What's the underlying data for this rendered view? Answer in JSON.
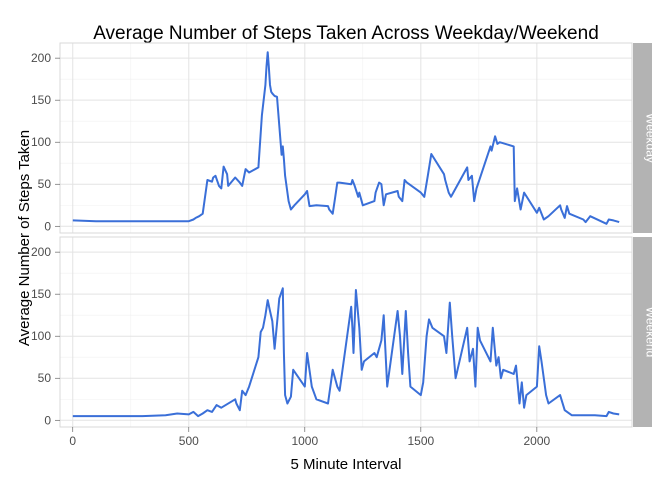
{
  "chart_data": {
    "type": "line",
    "title": "Average Number of Steps Taken Across Weekday/Weekend",
    "xlabel": "5 Minute Interval",
    "ylabel": "Average Number of Steps Taken",
    "xlim": [
      -55,
      2410
    ],
    "ylim": [
      -8,
      218
    ],
    "x_ticks": [
      0,
      500,
      1000,
      1500,
      2000
    ],
    "y_ticks": [
      0,
      50,
      100,
      150,
      200
    ],
    "grid": true,
    "line_color": "#3a6fd8",
    "panel_border_color": "#d9d9d9",
    "strip_color": "#b3b3b3",
    "facets": [
      {
        "name": "Weekday",
        "x": [
          0,
          100,
          200,
          300,
          400,
          480,
          500,
          520,
          530,
          545,
          560,
          580,
          600,
          605,
          615,
          630,
          640,
          650,
          665,
          670,
          700,
          720,
          730,
          745,
          760,
          800,
          815,
          830,
          835,
          840,
          845,
          850,
          855,
          860,
          870,
          880,
          900,
          905,
          910,
          915,
          930,
          940,
          955,
          1000,
          1010,
          1020,
          1050,
          1100,
          1105,
          1120,
          1130,
          1140,
          1150,
          1200,
          1205,
          1215,
          1230,
          1235,
          1250,
          1300,
          1305,
          1320,
          1330,
          1340,
          1350,
          1400,
          1405,
          1420,
          1430,
          1440,
          1450,
          1500,
          1515,
          1530,
          1545,
          1600,
          1605,
          1620,
          1630,
          1640,
          1700,
          1705,
          1720,
          1730,
          1740,
          1800,
          1805,
          1820,
          1830,
          1840,
          1900,
          1905,
          1915,
          1930,
          1945,
          2000,
          2010,
          2030,
          2050,
          2100,
          2105,
          2120,
          2130,
          2140,
          2200,
          2210,
          2230,
          2300,
          2310,
          2330,
          2355
        ],
        "y": [
          7,
          6,
          6,
          6,
          6,
          6,
          6,
          8,
          10,
          12,
          15,
          55,
          53,
          58,
          60,
          48,
          45,
          71,
          62,
          48,
          58,
          52,
          48,
          68,
          64,
          70,
          132,
          168,
          190,
          207,
          190,
          168,
          160,
          158,
          155,
          154,
          85,
          95,
          80,
          60,
          30,
          20,
          25,
          38,
          42,
          24,
          25,
          24,
          20,
          15,
          33,
          52,
          52,
          50,
          55,
          48,
          35,
          40,
          25,
          30,
          40,
          52,
          50,
          25,
          38,
          42,
          35,
          30,
          55,
          52,
          50,
          40,
          35,
          60,
          86,
          62,
          55,
          40,
          35,
          40,
          70,
          55,
          60,
          30,
          45,
          95,
          90,
          107,
          98,
          100,
          95,
          30,
          45,
          20,
          40,
          16,
          22,
          8,
          12,
          25,
          20,
          10,
          24,
          15,
          8,
          5,
          12,
          3,
          8,
          7,
          5
        ]
      },
      {
        "name": "Weekend",
        "x": [
          0,
          100,
          200,
          300,
          400,
          450,
          500,
          520,
          540,
          560,
          580,
          600,
          620,
          640,
          700,
          705,
          720,
          730,
          745,
          760,
          800,
          810,
          820,
          830,
          840,
          850,
          860,
          870,
          880,
          890,
          905,
          910,
          915,
          925,
          940,
          950,
          1000,
          1010,
          1030,
          1050,
          1100,
          1120,
          1140,
          1150,
          1200,
          1205,
          1210,
          1220,
          1235,
          1245,
          1255,
          1300,
          1310,
          1330,
          1340,
          1355,
          1400,
          1410,
          1420,
          1435,
          1445,
          1455,
          1500,
          1510,
          1525,
          1535,
          1550,
          1600,
          1610,
          1625,
          1635,
          1650,
          1700,
          1710,
          1725,
          1735,
          1745,
          1755,
          1800,
          1810,
          1825,
          1835,
          1845,
          1855,
          1900,
          1910,
          1925,
          1935,
          1945,
          1955,
          2000,
          2010,
          2020,
          2030,
          2040,
          2050,
          2100,
          2120,
          2150,
          2200,
          2250,
          2300,
          2310,
          2330,
          2355
        ],
        "y": [
          5,
          5,
          5,
          5,
          6,
          8,
          7,
          10,
          5,
          8,
          12,
          10,
          18,
          15,
          25,
          20,
          12,
          35,
          30,
          40,
          75,
          105,
          110,
          125,
          143,
          130,
          118,
          85,
          115,
          145,
          157,
          80,
          30,
          20,
          28,
          60,
          40,
          80,
          40,
          25,
          20,
          60,
          40,
          35,
          135,
          110,
          80,
          155,
          110,
          60,
          70,
          80,
          75,
          95,
          125,
          40,
          130,
          100,
          55,
          130,
          80,
          40,
          30,
          45,
          100,
          120,
          110,
          100,
          80,
          140,
          100,
          50,
          110,
          70,
          85,
          40,
          110,
          95,
          70,
          110,
          65,
          75,
          50,
          60,
          55,
          65,
          20,
          45,
          15,
          30,
          40,
          88,
          70,
          50,
          30,
          20,
          30,
          12,
          6,
          6,
          6,
          5,
          10,
          8,
          7
        ]
      }
    ]
  }
}
